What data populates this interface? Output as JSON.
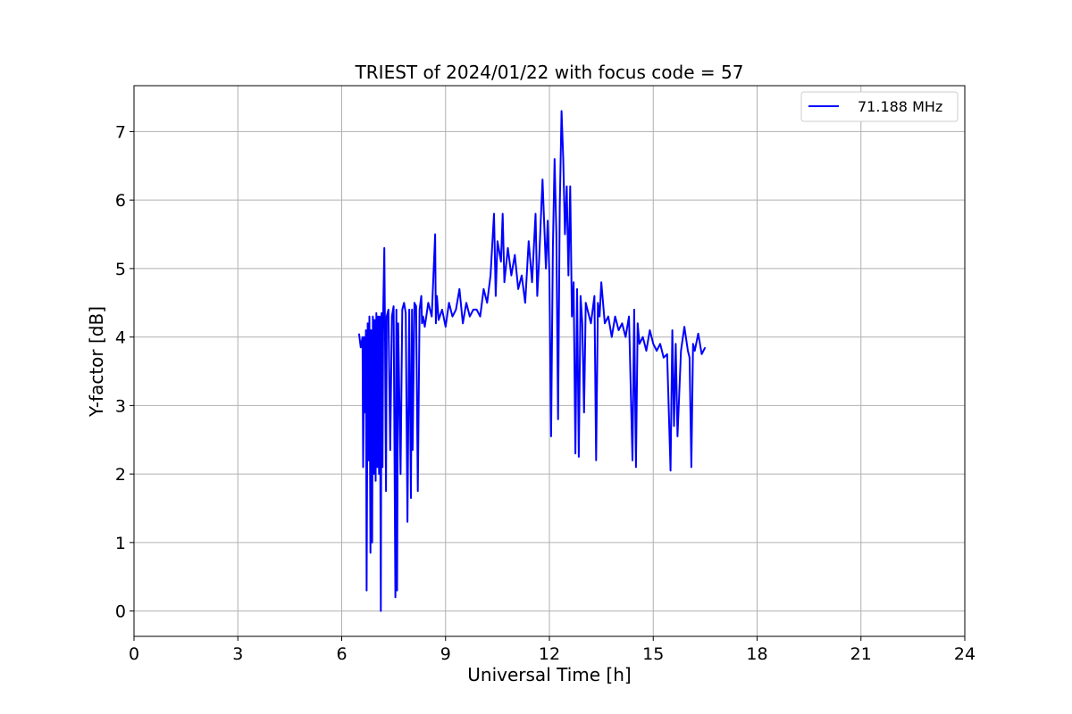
{
  "chart_data": {
    "type": "line",
    "title": "TRIEST of 2024/01/22 with focus code = 57",
    "xlabel": "Universal Time [h]",
    "ylabel": "Y-factor [dB]",
    "xlim": [
      0,
      24
    ],
    "ylim": [
      -0.37,
      7.67
    ],
    "xticks": [
      0,
      3,
      6,
      9,
      12,
      15,
      18,
      21,
      24
    ],
    "yticks": [
      0,
      1,
      2,
      3,
      4,
      5,
      6,
      7
    ],
    "grid": true,
    "legend_position": "top-right",
    "series": [
      {
        "name": "71.188 MHz",
        "color": "#0000ff",
        "x": [
          6.5,
          6.55,
          6.6,
          6.62,
          6.65,
          6.67,
          6.7,
          6.72,
          6.75,
          6.78,
          6.8,
          6.83,
          6.85,
          6.88,
          6.9,
          6.93,
          6.95,
          6.98,
          7.0,
          7.03,
          7.05,
          7.08,
          7.1,
          7.13,
          7.15,
          7.18,
          7.2,
          7.23,
          7.25,
          7.28,
          7.3,
          7.35,
          7.4,
          7.45,
          7.5,
          7.55,
          7.58,
          7.6,
          7.63,
          7.7,
          7.75,
          7.8,
          7.85,
          7.9,
          7.95,
          8.0,
          8.03,
          8.05,
          8.1,
          8.15,
          8.2,
          8.25,
          8.3,
          8.32,
          8.35,
          8.4,
          8.5,
          8.6,
          8.7,
          8.72,
          8.75,
          8.8,
          8.9,
          9.0,
          9.1,
          9.2,
          9.3,
          9.4,
          9.5,
          9.6,
          9.7,
          9.8,
          9.9,
          10.0,
          10.1,
          10.2,
          10.3,
          10.4,
          10.45,
          10.5,
          10.6,
          10.65,
          10.7,
          10.8,
          10.9,
          11.0,
          11.1,
          11.2,
          11.3,
          11.4,
          11.5,
          11.6,
          11.65,
          11.7,
          11.8,
          11.9,
          11.95,
          12.0,
          12.05,
          12.1,
          12.15,
          12.2,
          12.25,
          12.3,
          12.35,
          12.4,
          12.45,
          12.5,
          12.55,
          12.6,
          12.65,
          12.7,
          12.75,
          12.8,
          12.85,
          12.9,
          12.95,
          13.0,
          13.05,
          13.1,
          13.2,
          13.3,
          13.35,
          13.4,
          13.45,
          13.5,
          13.6,
          13.7,
          13.8,
          13.9,
          14.0,
          14.1,
          14.2,
          14.3,
          14.4,
          14.45,
          14.5,
          14.55,
          14.6,
          14.7,
          14.8,
          14.9,
          15.0,
          15.1,
          15.2,
          15.3,
          15.4,
          15.5,
          15.55,
          15.6,
          15.65,
          15.7,
          15.8,
          15.9,
          16.0,
          16.05,
          16.1,
          16.15,
          16.2,
          16.3,
          16.4,
          16.5
        ],
        "y": [
          4.05,
          3.85,
          4.0,
          2.1,
          4.0,
          2.9,
          4.1,
          0.3,
          4.2,
          2.2,
          4.3,
          0.85,
          4.1,
          1.0,
          4.3,
          2.0,
          4.25,
          1.9,
          4.35,
          2.1,
          4.3,
          2.0,
          4.3,
          0.0,
          4.35,
          2.1,
          4.4,
          5.3,
          4.2,
          1.75,
          4.3,
          4.4,
          2.35,
          4.3,
          4.45,
          0.2,
          4.4,
          0.3,
          4.2,
          2.0,
          4.4,
          4.5,
          4.35,
          1.3,
          4.4,
          1.65,
          4.4,
          2.35,
          4.5,
          4.45,
          1.75,
          4.4,
          4.6,
          4.2,
          4.3,
          4.15,
          4.5,
          4.3,
          5.5,
          4.2,
          4.6,
          4.25,
          4.4,
          4.15,
          4.5,
          4.3,
          4.4,
          4.7,
          4.2,
          4.5,
          4.3,
          4.4,
          4.4,
          4.3,
          4.7,
          4.5,
          4.9,
          5.8,
          4.6,
          5.4,
          5.1,
          5.8,
          4.8,
          5.3,
          4.9,
          5.2,
          4.7,
          4.9,
          4.5,
          5.4,
          4.8,
          5.8,
          4.6,
          5.1,
          6.3,
          5.0,
          5.7,
          4.9,
          2.55,
          5.3,
          6.6,
          5.5,
          2.8,
          5.9,
          7.3,
          6.6,
          5.5,
          6.2,
          4.9,
          6.2,
          4.3,
          4.8,
          2.3,
          4.7,
          2.25,
          4.6,
          4.2,
          2.9,
          4.5,
          4.4,
          4.2,
          4.6,
          2.2,
          4.5,
          4.3,
          4.8,
          4.2,
          4.3,
          4.0,
          4.3,
          4.1,
          4.2,
          4.0,
          4.3,
          2.2,
          4.4,
          2.1,
          4.2,
          3.9,
          4.0,
          3.8,
          4.1,
          3.9,
          3.8,
          3.9,
          3.7,
          3.75,
          2.05,
          4.1,
          2.7,
          3.9,
          2.55,
          3.8,
          4.15,
          3.8,
          3.7,
          2.1,
          3.9,
          3.8,
          4.05,
          3.75,
          3.85
        ]
      }
    ]
  }
}
